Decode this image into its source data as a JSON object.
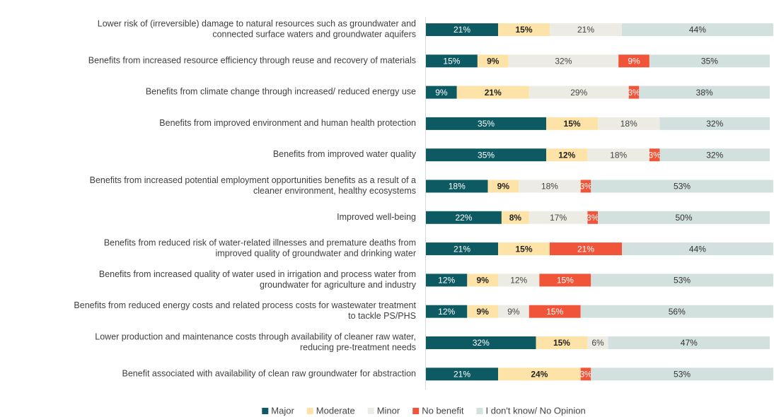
{
  "chart_data": {
    "type": "stacked-barh",
    "categories": [
      "Lower risk of (irreversible) damage to natural resources such as groundwater and\nconnected surface waters and groundwater aquifers",
      "Benefits from increased resource efficiency through reuse and recovery of materials",
      "Benefits from climate change through increased/ reduced energy use",
      "Benefits from improved environment and human health protection",
      "Benefits from improved water quality",
      "Benefits from increased potential employment opportunities benefits as a result of a\ncleaner environment, healthy ecosystems",
      "Improved well-being",
      "Benefits from reduced risk of water-related illnesses and premature deaths from\nimproved quality of groundwater and drinking water",
      "Benefits from increased quality of water used in irrigation and process water from\ngroundwater for agriculture and industry",
      "Benefits from reduced energy costs and related process costs for wastewater treatment\nto tackle PS/PHS",
      "Lower production and maintenance costs through availability of cleaner raw water,\nreducing pre-treatment needs",
      "Benefit associated with availability of clean raw groundwater for abstraction"
    ],
    "xlim": [
      0,
      100
    ],
    "legend": "bottom",
    "series": [
      {
        "name": "Major",
        "color": "#0e5a63",
        "text_color": "#ffffff",
        "values": [
          21,
          15,
          9,
          35,
          35,
          18,
          22,
          21,
          12,
          12,
          32,
          21
        ],
        "value_labels": [
          "21%",
          "15%",
          "9%",
          "35%",
          "35%",
          "18%",
          "22%",
          "21%",
          "12%",
          "12%",
          "32%",
          "21%"
        ]
      },
      {
        "name": "Moderate",
        "color": "#fde3a7",
        "text_color": "#222222",
        "values": [
          15,
          9,
          21,
          15,
          12,
          9,
          8,
          15,
          9,
          9,
          15,
          24
        ],
        "value_labels": [
          "15%",
          "9%",
          "21%",
          "15%",
          "12%",
          "9%",
          "8%",
          "15%",
          "9%",
          "9%",
          "15%",
          "24%"
        ]
      },
      {
        "name": "Minor",
        "color": "#ecebe4",
        "text_color": "#444444",
        "values": [
          21,
          32,
          29,
          18,
          18,
          18,
          17,
          null,
          12,
          9,
          6,
          null
        ],
        "value_labels": [
          "21%",
          "32%",
          "29%",
          "18%",
          "18%",
          "18%",
          "17%",
          null,
          "12%",
          "9%",
          "6%",
          null
        ]
      },
      {
        "name": "No benefit",
        "color": "#f0553a",
        "text_color": "#ffffff",
        "values": [
          null,
          9,
          3,
          null,
          3,
          3,
          3,
          21,
          15,
          15,
          null,
          3
        ],
        "value_labels": [
          null,
          "9%",
          "3%",
          null,
          "3%",
          "3%",
          "3%",
          "21%",
          "15%",
          "15%",
          null,
          "3%"
        ]
      },
      {
        "name": "I don't know/ No Opinion",
        "color": "#d2e0de",
        "text_color": "#333333",
        "values": [
          44,
          35,
          38,
          32,
          32,
          53,
          50,
          44,
          53,
          56,
          47,
          53
        ],
        "value_labels": [
          "44%",
          "35%",
          "38%",
          "32%",
          "32%",
          "53%",
          "50%",
          "44%",
          "53%",
          "56%",
          "47%",
          "53%"
        ]
      }
    ]
  }
}
